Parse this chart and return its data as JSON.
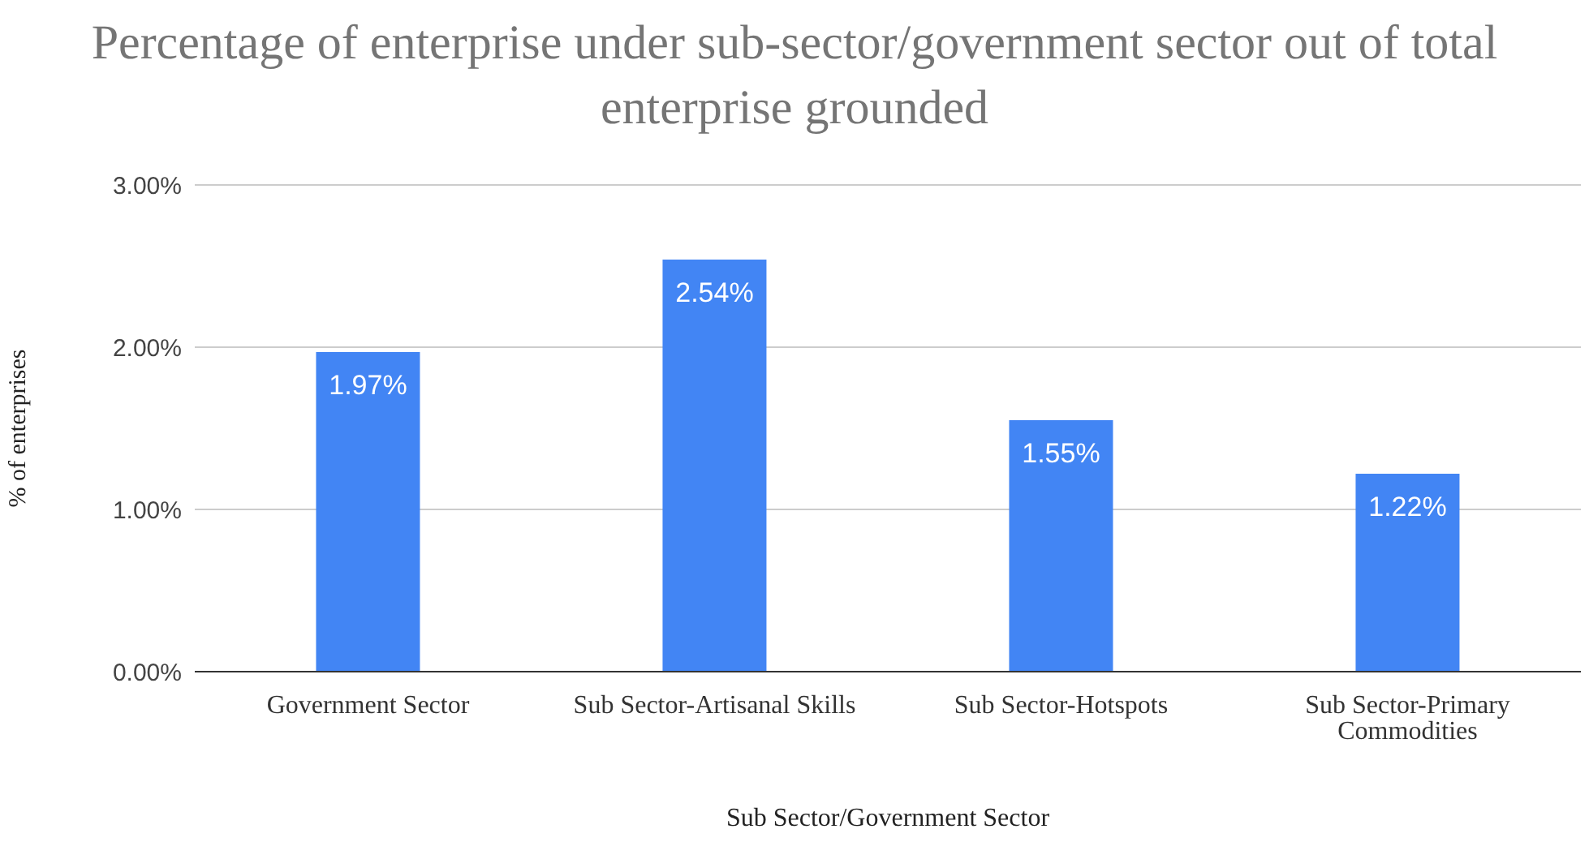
{
  "chart_data": {
    "type": "bar",
    "title": "Percentage of enterprise under sub-sector/government sector out of total enterprise grounded",
    "xlabel": "Sub Sector/Government Sector",
    "ylabel": "% of enterprises",
    "categories": [
      "Government Sector",
      "Sub Sector-Artisanal Skills",
      "Sub Sector-Hotspots",
      "Sub Sector-Primary Commodities"
    ],
    "values": [
      1.97,
      2.54,
      1.55,
      1.22
    ],
    "value_labels": [
      "1.97%",
      "2.54%",
      "1.55%",
      "1.22%"
    ],
    "color": "#4285f4",
    "ylim": [
      0,
      3
    ],
    "yticks": [
      {
        "value": 0,
        "label": "0.00%"
      },
      {
        "value": 1,
        "label": "1.00%"
      },
      {
        "value": 2,
        "label": "2.00%"
      },
      {
        "value": 3,
        "label": "3.00%"
      }
    ],
    "grid": "y",
    "legend": false
  }
}
